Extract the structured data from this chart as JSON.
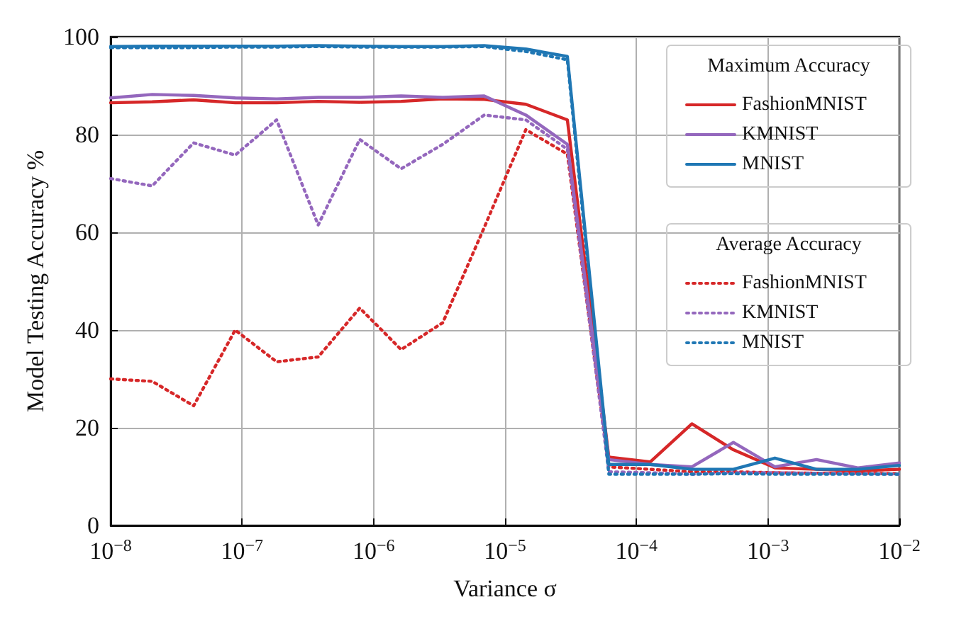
{
  "chart_data": {
    "type": "line",
    "xlabel": "Variance σ",
    "ylabel": "Model Testing Accuracy %",
    "legend_title": [
      "Maximum Accuracy",
      "Average Accuracy"
    ],
    "legend": "top right",
    "grid": true,
    "log": "x",
    "marker": "none",
    "x": [
      1e-08,
      2.07e-08,
      4.28e-08,
      8.86e-08,
      1.83e-07,
      3.79e-07,
      7.85e-07,
      1.62e-06,
      3.36e-06,
      6.95e-06,
      1.44e-05,
      2.98e-05,
      6.16e-05,
      0.000127,
      0.000264,
      0.000546,
      0.00113,
      0.00234,
      0.00483,
      0.01
    ],
    "xlim": [
      1e-08,
      0.01
    ],
    "xticks": [
      {
        "value": 1e-08,
        "label": "10$^{−8}$"
      },
      {
        "value": 1e-07,
        "label": "10$^{−7}$"
      },
      {
        "value": 1e-06,
        "label": "10$^{−6}$"
      },
      {
        "value": 1e-05,
        "label": "10$^{−5}$"
      },
      {
        "value": 0.0001,
        "label": "10$^{−4}$"
      },
      {
        "value": 0.001,
        "label": "10$^{−3}$"
      },
      {
        "value": 0.01,
        "label": "10$^{−2}$"
      }
    ],
    "ylim": [
      0,
      100
    ],
    "yticks": [
      0,
      20,
      40,
      60,
      80,
      100
    ],
    "series": [
      {
        "name": "FashionMNIST",
        "color": "#d62728",
        "line_style": "solid",
        "values": [
          86.5,
          86.7,
          87.1,
          86.5,
          86.5,
          86.8,
          86.6,
          86.8,
          87.3,
          87.2,
          86.2,
          83,
          14,
          13,
          20.8,
          15.5,
          11.8,
          11.5,
          11.2,
          11.5
        ]
      },
      {
        "name": "KMNIST",
        "color": "#9467bd",
        "line_style": "solid",
        "values": [
          87.5,
          88.2,
          88,
          87.5,
          87.3,
          87.6,
          87.6,
          87.9,
          87.6,
          87.9,
          84,
          78,
          13.5,
          12.5,
          12,
          17,
          12,
          13.5,
          11.8,
          12.8
        ]
      },
      {
        "name": "MNIST",
        "color": "#1f77b4",
        "line_style": "solid",
        "values": [
          98,
          98.1,
          98.1,
          98.1,
          98.1,
          98.2,
          98.1,
          98,
          98,
          98.2,
          97.5,
          96,
          12.5,
          12.5,
          11.5,
          11.5,
          13.8,
          11.5,
          11.5,
          12.3
        ]
      },
      {
        "name": "FashionMNIST",
        "color": "#d62728",
        "line_style": "dotted",
        "values": [
          30,
          29.5,
          24.5,
          40,
          33.5,
          34.5,
          44.5,
          36,
          41.5,
          61,
          81,
          76,
          12,
          11.5,
          11,
          11,
          10.8,
          10.7,
          10.7,
          10.6
        ]
      },
      {
        "name": "KMNIST",
        "color": "#9467bd",
        "line_style": "dotted",
        "values": [
          71,
          69.5,
          78.3,
          75.8,
          83,
          61.5,
          79,
          73,
          78,
          84,
          83,
          77,
          11,
          10.8,
          10.5,
          10.8,
          10.8,
          10.7,
          10.6,
          10.5
        ]
      },
      {
        "name": "MNIST",
        "color": "#1f77b4",
        "line_style": "dotted",
        "values": [
          97.8,
          97.8,
          97.8,
          97.9,
          97.9,
          98,
          97.9,
          97.9,
          97.9,
          98,
          97,
          95.3,
          10.5,
          10.5,
          10.5,
          10.6,
          10.5,
          10.5,
          10.5,
          10.5
        ]
      }
    ]
  }
}
